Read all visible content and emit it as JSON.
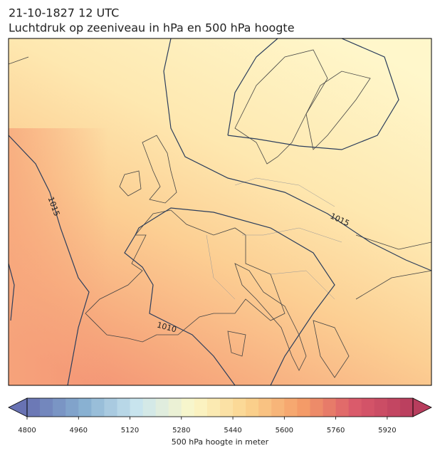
{
  "header": {
    "title": "21-10-1827 12 UTC",
    "subtitle": "Luchtdruk op zeeniveau in hPa en 500 hPa hoogte"
  },
  "map": {
    "isobar_labels": [
      "1015",
      "1015",
      "1010"
    ]
  },
  "colorbar": {
    "lim": [
      4800,
      6000
    ],
    "bands": 30,
    "ticks": [
      4800,
      4960,
      5120,
      5280,
      5440,
      5600,
      5760,
      5920
    ],
    "colormap": [
      "#6872b3",
      "#86aed0",
      "#c9e5ef",
      "#fbf7c9",
      "#fbd48e",
      "#f49c68",
      "#d9586b",
      "#b73d5d"
    ],
    "label": "500 hPa hoogte in meter"
  }
}
